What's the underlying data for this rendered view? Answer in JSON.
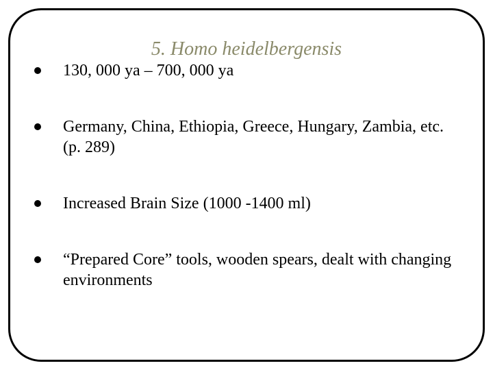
{
  "title": "5.  Homo heidelbergensis",
  "title_color": "#8a8a6a",
  "title_fontsize": 28,
  "body_fontsize": 24,
  "border_color": "#000000",
  "border_radius": 48,
  "background_color": "#ffffff",
  "bullets": [
    "130, 000 ya – 700, 000 ya",
    "Germany, China, Ethiopia, Greece, Hungary, Zambia, etc. (p. 289)",
    "Increased Brain Size (1000 -1400 ml)",
    "“Prepared Core” tools, wooden spears, dealt with changing environments"
  ]
}
